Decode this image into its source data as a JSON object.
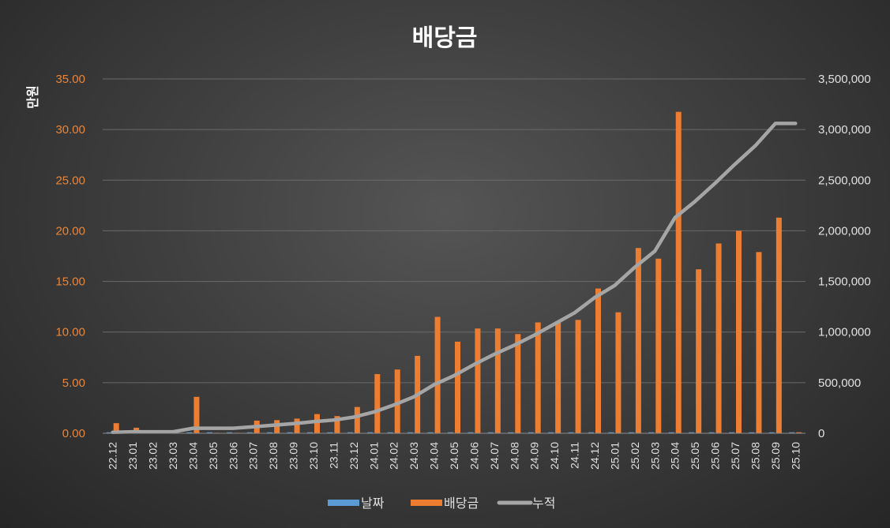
{
  "chart_data": {
    "type": "bar",
    "title": "배당금",
    "ylabel": "만원",
    "ylim": [
      0,
      35
    ],
    "y2lim": [
      0,
      3500000
    ],
    "yticks": [
      "0.00",
      "5.00",
      "10.00",
      "15.00",
      "20.00",
      "25.00",
      "30.00",
      "35.00"
    ],
    "y2ticks": [
      "0",
      "500,000",
      "1,000,000",
      "1,500,000",
      "2,000,000",
      "2,500,000",
      "3,000,000",
      "3,500,000"
    ],
    "grid": true,
    "legend_position": "bottom",
    "categories": [
      "22.12",
      "23.01",
      "23.02",
      "23.03",
      "23.04",
      "23.05",
      "23.06",
      "23.07",
      "23.08",
      "23.09",
      "23.10",
      "23.11",
      "23.12",
      "24.01",
      "24.02",
      "24.03",
      "24.04",
      "24.05",
      "24.06",
      "24.07",
      "24.08",
      "24.09",
      "24.10",
      "24.11",
      "24.12",
      "25.01",
      "25.02",
      "25.03",
      "25.04",
      "25.05",
      "25.06",
      "25.07",
      "25.08",
      "25.09",
      "25.10"
    ],
    "series": [
      {
        "name": "날짜",
        "type": "bar",
        "axis": "left",
        "color": "#5b9bd5",
        "values": [
          0.1,
          0.1,
          0.1,
          0.1,
          0.1,
          0.1,
          0.1,
          0.1,
          0.1,
          0.1,
          0.1,
          0.1,
          0.1,
          0.1,
          0.1,
          0.1,
          0.1,
          0.1,
          0.1,
          0.1,
          0.1,
          0.1,
          0.1,
          0.1,
          0.1,
          0.1,
          0.1,
          0.1,
          0.1,
          0.1,
          0.1,
          0.1,
          0.1,
          0.1,
          0.1
        ]
      },
      {
        "name": "배당금",
        "type": "bar",
        "axis": "left",
        "color": "#ed7d31",
        "values": [
          1.0,
          0.55,
          0.05,
          0.05,
          3.6,
          0.05,
          0.05,
          1.25,
          1.3,
          1.45,
          1.9,
          1.7,
          2.6,
          5.85,
          6.3,
          7.65,
          11.5,
          9.05,
          10.35,
          10.35,
          9.8,
          10.95,
          11.05,
          11.2,
          14.3,
          11.95,
          18.3,
          17.25,
          31.75,
          16.2,
          18.75,
          20.0,
          17.9,
          21.3,
          0.1
        ]
      },
      {
        "name": "누적",
        "type": "line",
        "axis": "right",
        "color": "#a5a5a5",
        "values": [
          10000,
          15000,
          15000,
          15000,
          50000,
          50000,
          50000,
          65000,
          80000,
          95000,
          115000,
          130000,
          160000,
          210000,
          280000,
          360000,
          480000,
          570000,
          680000,
          780000,
          870000,
          970000,
          1080000,
          1190000,
          1340000,
          1460000,
          1640000,
          1800000,
          2130000,
          2290000,
          2470000,
          2660000,
          2840000,
          3060000,
          3060000
        ]
      }
    ]
  }
}
